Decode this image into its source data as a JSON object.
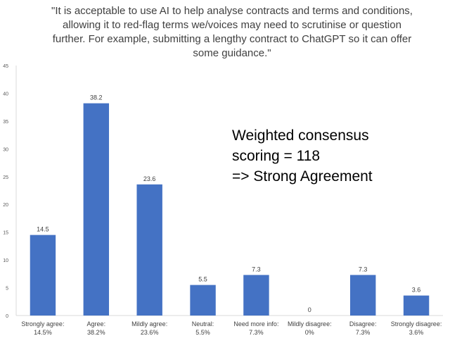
{
  "chart_data": {
    "type": "bar",
    "title_lines": [
      "\"It is acceptable to use AI to help analyse contracts and terms and conditions,",
      "allowing it to red-flag terms we/voices may need to scrutinise or question",
      "further. For example, submitting a lengthy contract to ChatGPT so it can offer",
      "some guidance.\""
    ],
    "categories": [
      [
        "Strongly agree:",
        "14.5%"
      ],
      [
        "Agree:",
        "38.2%"
      ],
      [
        "Mildly agree:",
        "23.6%"
      ],
      [
        "Neutral:",
        "5.5%"
      ],
      [
        "Need more info:",
        "7.3%"
      ],
      [
        "Mildly disagree:",
        "0%"
      ],
      [
        "Disagree:",
        "7.3%"
      ],
      [
        "Strongly disagree:",
        "3.6%"
      ]
    ],
    "values": [
      14.5,
      38.2,
      23.6,
      5.5,
      7.3,
      0,
      7.3,
      3.6
    ],
    "value_labels": [
      "14.5",
      "38.2",
      "23.6",
      "5.5",
      "7.3",
      "0",
      "7.3",
      "3.6"
    ],
    "yticks": [
      "0",
      "5",
      "10",
      "15",
      "20",
      "25",
      "30",
      "35",
      "40",
      "45"
    ],
    "ylim": [
      0,
      45
    ],
    "grid": false,
    "bar_color": "#4472c4",
    "annotation_lines": [
      "Weighted consensus",
      "scoring = 118",
      "=> Strong Agreement"
    ]
  }
}
